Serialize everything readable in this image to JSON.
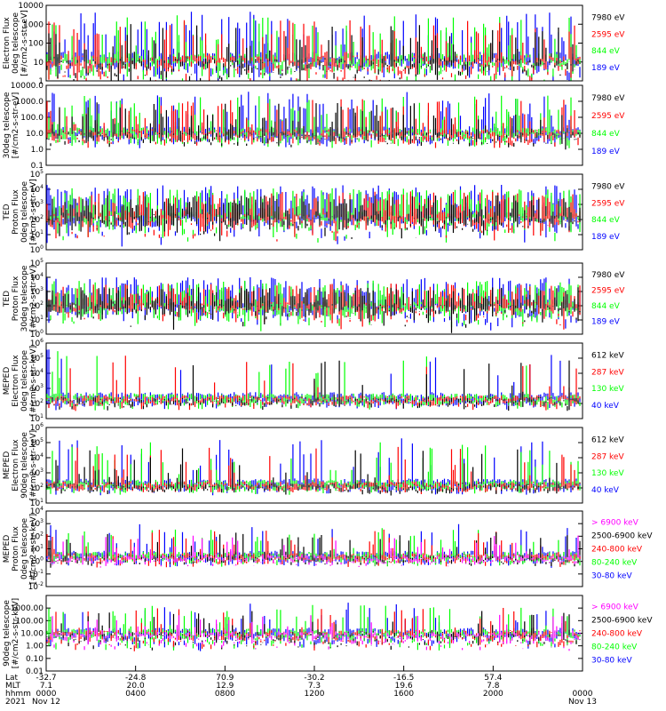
{
  "colors": {
    "black": "#000000",
    "red": "#ff0000",
    "green": "#00ff00",
    "blue": "#0000ff",
    "magenta": "#ff00ff"
  },
  "chart_data": [
    {
      "type": "line",
      "panel": "ted-electron-0deg",
      "ylabel": [
        "Electron Flux",
        "0deg telescope",
        "[#/cm2-s-str-eV]"
      ],
      "yscale": "log",
      "ylim": [
        1,
        10000
      ],
      "ytick_labels": [
        "1",
        "10",
        "100",
        "1000",
        "10000"
      ],
      "ytick_values": [
        1,
        10,
        100,
        1000,
        10000
      ],
      "legend": [
        {
          "label": "7980 eV",
          "color": "black"
        },
        {
          "label": "2595 eV",
          "color": "red"
        },
        {
          "label": "844 eV",
          "color": "green"
        },
        {
          "label": "189 eV",
          "color": "blue"
        }
      ],
      "series_profile": {
        "base": [
          1,
          25
        ],
        "bursts": "frequent",
        "peak": 5000
      }
    },
    {
      "type": "line",
      "panel": "ted-electron-30deg",
      "ylabel": [
        "30deg telescope",
        "[#/cm2-s-str-eV]"
      ],
      "yscale": "log",
      "ylim": [
        0.1,
        10000
      ],
      "ytick_labels": [
        "0.1",
        "1.0",
        "10.0",
        "100.0",
        "1000.0",
        "10000.0"
      ],
      "ytick_values": [
        0.1,
        1,
        10,
        100,
        1000,
        10000
      ],
      "legend": [
        {
          "label": "7980 eV",
          "color": "black"
        },
        {
          "label": "2595 eV",
          "color": "red"
        },
        {
          "label": "844 eV",
          "color": "green"
        },
        {
          "label": "189 eV",
          "color": "blue"
        }
      ],
      "series_profile": {
        "base": [
          3,
          20
        ],
        "bursts": "frequent",
        "peak": 4000
      }
    },
    {
      "type": "line",
      "panel": "ted-proton-0deg",
      "ylabel": [
        "TED",
        "Proton Flux",
        "0deg telescope",
        "[#/cm2-s-str-eV]"
      ],
      "yscale": "log",
      "ylim": [
        1,
        100000
      ],
      "ytick_labels": [
        "10^0",
        "10^1",
        "10^2",
        "10^3",
        "10^4",
        "10^5"
      ],
      "ytick_values": [
        1,
        10,
        100,
        1000,
        10000,
        100000
      ],
      "legend": [
        {
          "label": "7980 eV",
          "color": "black"
        },
        {
          "label": "2595 eV",
          "color": "red"
        },
        {
          "label": "844 eV",
          "color": "green"
        },
        {
          "label": "189 eV",
          "color": "blue"
        }
      ],
      "series_profile": {
        "base": [
          5,
          300
        ],
        "bursts": "continuous",
        "peak": 20000
      }
    },
    {
      "type": "line",
      "panel": "ted-proton-30deg",
      "ylabel": [
        "TED",
        "Proton Flux",
        "30deg telescope",
        "[#/cm2-s-str-eV]"
      ],
      "yscale": "log",
      "ylim": [
        1,
        100000
      ],
      "ytick_labels": [
        "10^0",
        "10^1",
        "10^2",
        "10^3",
        "10^4",
        "10^5"
      ],
      "ytick_values": [
        1,
        10,
        100,
        1000,
        10000,
        100000
      ],
      "legend": [
        {
          "label": "7980 eV",
          "color": "black"
        },
        {
          "label": "2595 eV",
          "color": "red"
        },
        {
          "label": "844 eV",
          "color": "green"
        },
        {
          "label": "189 eV",
          "color": "blue"
        }
      ],
      "series_profile": {
        "base": [
          3,
          200
        ],
        "bursts": "continuous",
        "peak": 10000
      }
    },
    {
      "type": "line",
      "panel": "meped-electron-0deg",
      "ylabel": [
        "MEPED",
        "Electron Flux",
        "0deg telescope",
        "[#/cm2-s-str-keV]"
      ],
      "yscale": "log",
      "ylim": [
        10,
        1000000
      ],
      "ytick_labels": [
        "10^1",
        "10^2",
        "10^3",
        "10^4",
        "10^5",
        "10^6"
      ],
      "ytick_values": [
        10,
        100,
        1000,
        10000,
        100000,
        1000000
      ],
      "legend": [
        {
          "label": "612 keV",
          "color": "black"
        },
        {
          "label": "287 keV",
          "color": "red"
        },
        {
          "label": "130 keV",
          "color": "green"
        },
        {
          "label": "40 keV",
          "color": "blue"
        }
      ],
      "series_profile": {
        "base": [
          100,
          400
        ],
        "bursts": "sparse",
        "peak": 600000
      }
    },
    {
      "type": "line",
      "panel": "meped-electron-90deg",
      "ylabel": [
        "MEPED",
        "Electron Flux",
        "90deg telescope",
        "[#/cm2-s-str-keV]"
      ],
      "yscale": "log",
      "ylim": [
        10,
        1000000
      ],
      "ytick_labels": [
        "10^1",
        "10^2",
        "10^3",
        "10^4",
        "10^5",
        "10^6"
      ],
      "ytick_values": [
        10,
        100,
        1000,
        10000,
        100000,
        1000000
      ],
      "legend": [
        {
          "label": "612 keV",
          "color": "black"
        },
        {
          "label": "287 keV",
          "color": "red"
        },
        {
          "label": "130 keV",
          "color": "green"
        },
        {
          "label": "40 keV",
          "color": "blue"
        }
      ],
      "series_profile": {
        "base": [
          100,
          300
        ],
        "bursts": "periodic",
        "peak": 200000
      }
    },
    {
      "type": "line",
      "panel": "meped-proton-0deg",
      "ylabel": [
        "MEPED",
        "Proton Flux",
        "0deg telescope",
        "[#/cm2-s-str-keV]"
      ],
      "yscale": "log",
      "ylim": [
        0.01,
        10000
      ],
      "ytick_labels": [
        "10^-2",
        "10^-1",
        "10^0",
        "10^1",
        "10^2",
        "10^3",
        "10^4"
      ],
      "ytick_values": [
        0.01,
        0.1,
        1,
        10,
        100,
        1000,
        10000
      ],
      "legend": [
        {
          "label": "> 6900 keV",
          "color": "magenta"
        },
        {
          "label": "2500-6900 keV",
          "color": "black"
        },
        {
          "label": "240-800 keV",
          "color": "red"
        },
        {
          "label": "80-240 keV",
          "color": "green"
        },
        {
          "label": "30-80 keV",
          "color": "blue"
        }
      ],
      "series_profile": {
        "base": [
          1,
          5
        ],
        "bursts": "periodic",
        "peak": 1000
      }
    },
    {
      "type": "line",
      "panel": "meped-proton-90deg",
      "ylabel": [
        "90deg telescope",
        "[#/cm2-s-str-keV]"
      ],
      "yscale": "log",
      "ylim": [
        0.01,
        10000
      ],
      "ytick_labels": [
        "0.01",
        "0.10",
        "1.00",
        "10.00",
        "100.00",
        "1000.00"
      ],
      "ytick_values": [
        0.01,
        0.1,
        1,
        10,
        100,
        1000
      ],
      "legend": [
        {
          "label": "> 6900 keV",
          "color": "magenta"
        },
        {
          "label": "2500-6900 keV",
          "color": "black"
        },
        {
          "label": "240-800 keV",
          "color": "red"
        },
        {
          "label": "80-240 keV",
          "color": "green"
        },
        {
          "label": "30-80 keV",
          "color": "blue"
        }
      ],
      "series_profile": {
        "base": [
          1,
          20
        ],
        "bursts": "periodic",
        "peak": 3000
      }
    }
  ],
  "x_axis": {
    "row_labels": [
      "Lat",
      "MLT",
      "hhmm",
      "2021"
    ],
    "ticks": [
      {
        "lat": "-32.7",
        "mlt": "7.1",
        "time": "0000",
        "date": "Nov 12"
      },
      {
        "lat": "-24.8",
        "mlt": "20.0",
        "time": "0400",
        "date": ""
      },
      {
        "lat": "70.9",
        "mlt": "12.9",
        "time": "0800",
        "date": ""
      },
      {
        "lat": "-30.2",
        "mlt": "7.3",
        "time": "1200",
        "date": ""
      },
      {
        "lat": "-16.5",
        "mlt": "19.6",
        "time": "1600",
        "date": ""
      },
      {
        "lat": "57.4",
        "mlt": "7.8",
        "time": "2000",
        "date": ""
      },
      {
        "lat": "",
        "mlt": "",
        "time": "0000",
        "date": "Nov 13"
      }
    ]
  }
}
